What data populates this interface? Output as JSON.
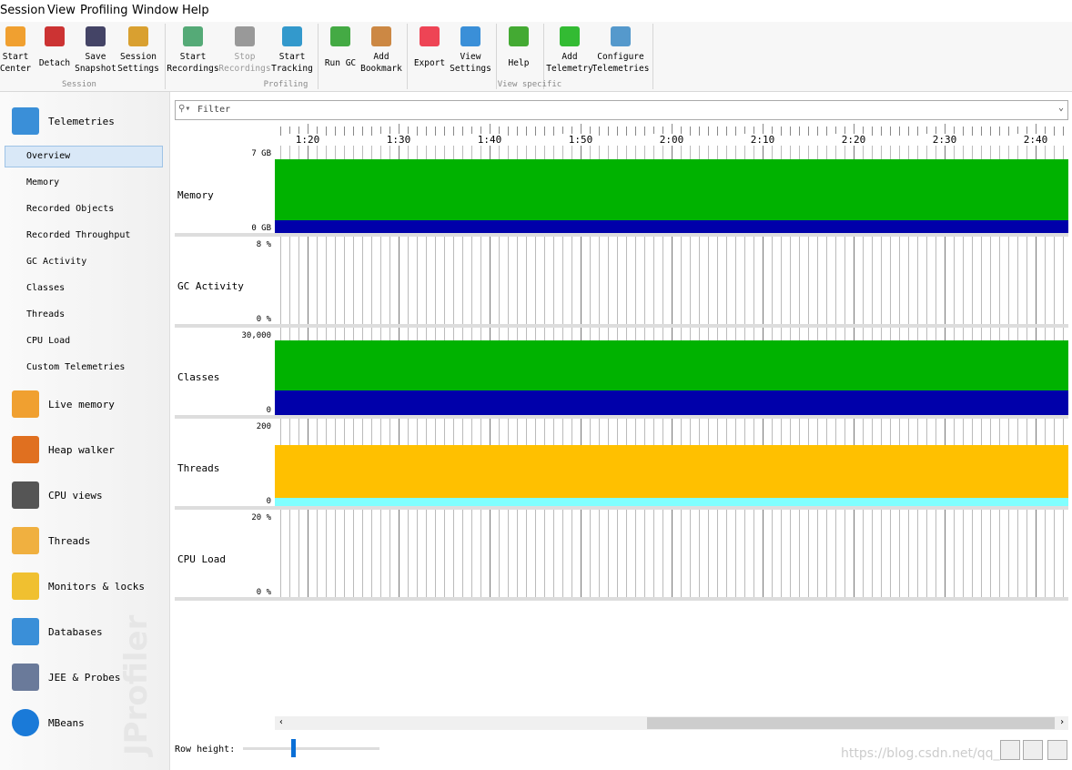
{
  "menu": [
    "Session",
    "View",
    "Profiling",
    "Window",
    "Help"
  ],
  "toolbar": {
    "groups": [
      {
        "label": "Session",
        "buttons": [
          [
            "Start",
            "Center"
          ],
          [
            "Detach"
          ],
          [
            "Save",
            "Snapshot"
          ],
          [
            "Session",
            "Settings"
          ]
        ]
      },
      {
        "label": "Profiling",
        "buttons": [
          [
            "Start",
            "Recordings"
          ],
          [
            "Stop",
            "Recordings"
          ],
          [
            "Start",
            "Tracking"
          ],
          [
            "Run GC"
          ],
          [
            "Add",
            "Bookmark"
          ]
        ]
      },
      {
        "label": "View specific",
        "buttons": [
          [
            "Export"
          ],
          [
            "View",
            "Settings"
          ],
          [
            "Help"
          ],
          [
            "Add",
            "Telemetry"
          ],
          [
            "Configure",
            "Telemetries"
          ]
        ]
      }
    ]
  },
  "sidebar": {
    "sections": [
      {
        "label": "Telemetries",
        "items": [
          "Overview",
          "Memory",
          "Recorded Objects",
          "Recorded Throughput",
          "GC Activity",
          "Classes",
          "Threads",
          "CPU Load",
          "Custom Telemetries"
        ]
      },
      {
        "label": "Live memory"
      },
      {
        "label": "Heap walker"
      },
      {
        "label": "CPU views"
      },
      {
        "label": "Threads"
      },
      {
        "label": "Monitors & locks"
      },
      {
        "label": "Databases"
      },
      {
        "label": "JEE & Probes"
      },
      {
        "label": "MBeans"
      }
    ],
    "brand": "JProfiler"
  },
  "filter": "Filter",
  "time_axis": [
    "1:20",
    "1:30",
    "1:40",
    "1:50",
    "2:00",
    "2:10",
    "2:20",
    "2:30",
    "2:40"
  ],
  "rows": [
    {
      "label": "Memory",
      "max": "7 GB",
      "min": "0 GB"
    },
    {
      "label": "GC Activity",
      "max": "8 %",
      "min": "0 %"
    },
    {
      "label": "Classes",
      "max": "30,000",
      "min": "0"
    },
    {
      "label": "Threads",
      "max": "200",
      "min": "0"
    },
    {
      "label": "CPU Load",
      "max": "20 %",
      "min": "0 %"
    }
  ],
  "row_height": "Row height:",
  "watermark": "https://blog.csdn.net/qq_"
}
